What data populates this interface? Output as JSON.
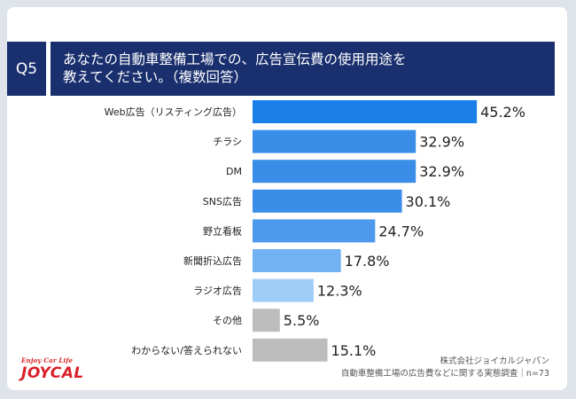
{
  "question": {
    "number": "Q5",
    "line1": "あなたの自動車整備工場での、広告宣伝費の使用用途を",
    "line2": "教えてください。（複数回答）"
  },
  "chart_data": {
    "type": "bar",
    "orientation": "horizontal",
    "categories": [
      "Web広告（リスティング広告）",
      "チラシ",
      "DM",
      "SNS広告",
      "野立看板",
      "新聞折込広告",
      "ラジオ広告",
      "その他",
      "わからない/答えられない"
    ],
    "values": [
      45.2,
      32.9,
      32.9,
      30.1,
      24.7,
      17.8,
      12.3,
      5.5,
      15.1
    ],
    "value_labels": [
      "45.2%",
      "32.9%",
      "32.9%",
      "30.1%",
      "24.7%",
      "17.8%",
      "12.3%",
      "5.5%",
      "15.1%"
    ],
    "colors": [
      "#1a7fe8",
      "#3b8ee8",
      "#3b8ee8",
      "#3b8ee8",
      "#4d99ec",
      "#72b1f2",
      "#9ecdf8",
      "#bdbdbd",
      "#bdbdbd"
    ]
  },
  "footer": {
    "company": "株式会社ジョイカルジャパン",
    "survey": "自動車整備工場の広告費などに関する実態調査｜n=73"
  },
  "logo": {
    "tagline": "Enjoy Car Life",
    "name": "JOYCAL"
  }
}
